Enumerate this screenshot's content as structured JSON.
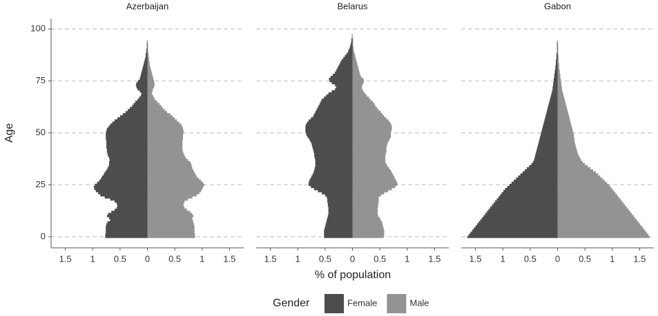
{
  "chart_data": {
    "type": "bar",
    "x_label": "% of population",
    "y_label": "Age",
    "legend_title": "Gender",
    "legend_position": "bottom",
    "grid": true,
    "xlim": [
      -1.76,
      1.76
    ],
    "xticks": [
      {
        "value": -1.5,
        "label": "1.5"
      },
      {
        "value": -1,
        "label": "1"
      },
      {
        "value": -0.5,
        "label": "0.5"
      },
      0,
      0.5,
      1,
      1.5
    ],
    "ylim": [
      -5,
      105
    ],
    "yticks": [
      0,
      25,
      50,
      75,
      100
    ],
    "ages": [
      0,
      1,
      2,
      3,
      4,
      5,
      6,
      7,
      8,
      9,
      10,
      11,
      12,
      13,
      14,
      15,
      16,
      17,
      18,
      19,
      20,
      21,
      22,
      23,
      24,
      25,
      26,
      27,
      28,
      29,
      30,
      31,
      32,
      33,
      34,
      35,
      36,
      37,
      38,
      39,
      40,
      41,
      42,
      43,
      44,
      45,
      46,
      47,
      48,
      49,
      50,
      51,
      52,
      53,
      54,
      55,
      56,
      57,
      58,
      59,
      60,
      61,
      62,
      63,
      64,
      65,
      66,
      67,
      68,
      69,
      70,
      71,
      72,
      73,
      74,
      75,
      76,
      77,
      78,
      79,
      80,
      81,
      82,
      83,
      84,
      85,
      86,
      87,
      88,
      89,
      90,
      91,
      92,
      93,
      94,
      95,
      96,
      97,
      98,
      99,
      100
    ],
    "panels": [
      {
        "title": "Azerbaijan",
        "series": [
          {
            "name": "Female",
            "color": "#4d4d4d",
            "values": [
              -0.77,
              -0.77,
              -0.76,
              -0.76,
              -0.76,
              -0.76,
              -0.75,
              -0.73,
              -0.68,
              -0.7,
              -0.74,
              -0.72,
              -0.66,
              -0.6,
              -0.56,
              -0.55,
              -0.56,
              -0.6,
              -0.68,
              -0.78,
              -0.86,
              -0.9,
              -0.94,
              -0.97,
              -0.98,
              -0.96,
              -0.92,
              -0.88,
              -0.85,
              -0.83,
              -0.8,
              -0.78,
              -0.75,
              -0.73,
              -0.71,
              -0.7,
              -0.7,
              -0.69,
              -0.7,
              -0.72,
              -0.73,
              -0.74,
              -0.74,
              -0.75,
              -0.75,
              -0.75,
              -0.75,
              -0.76,
              -0.76,
              -0.76,
              -0.76,
              -0.75,
              -0.74,
              -0.71,
              -0.68,
              -0.64,
              -0.6,
              -0.55,
              -0.5,
              -0.45,
              -0.4,
              -0.36,
              -0.32,
              -0.28,
              -0.25,
              -0.22,
              -0.18,
              -0.15,
              -0.12,
              -0.11,
              -0.14,
              -0.18,
              -0.2,
              -0.21,
              -0.2,
              -0.17,
              -0.14,
              -0.13,
              -0.12,
              -0.11,
              -0.1,
              -0.09,
              -0.08,
              -0.07,
              -0.06,
              -0.05,
              -0.04,
              -0.03,
              -0.03,
              -0.02,
              -0.02,
              -0.01,
              -0.01,
              -0.01,
              -0.01,
              0,
              0,
              0,
              0,
              0,
              0
            ]
          },
          {
            "name": "Male",
            "color": "#939393",
            "values": [
              0.87,
              0.87,
              0.86,
              0.86,
              0.86,
              0.86,
              0.85,
              0.84,
              0.83,
              0.82,
              0.84,
              0.82,
              0.78,
              0.72,
              0.68,
              0.66,
              0.66,
              0.68,
              0.74,
              0.82,
              0.9,
              0.95,
              0.98,
              1.0,
              1.02,
              1.04,
              1.02,
              0.98,
              0.94,
              0.9,
              0.88,
              0.86,
              0.84,
              0.82,
              0.81,
              0.8,
              0.78,
              0.74,
              0.7,
              0.68,
              0.66,
              0.65,
              0.64,
              0.64,
              0.64,
              0.64,
              0.64,
              0.65,
              0.65,
              0.65,
              0.66,
              0.66,
              0.65,
              0.64,
              0.62,
              0.58,
              0.54,
              0.5,
              0.46,
              0.42,
              0.36,
              0.32,
              0.28,
              0.25,
              0.22,
              0.18,
              0.14,
              0.12,
              0.1,
              0.08,
              0.09,
              0.1,
              0.12,
              0.13,
              0.13,
              0.12,
              0.11,
              0.1,
              0.09,
              0.08,
              0.07,
              0.06,
              0.05,
              0.04,
              0.04,
              0.03,
              0.03,
              0.02,
              0.02,
              0.01,
              0.01,
              0.01,
              0.01,
              0.01,
              0,
              0,
              0,
              0,
              0,
              0,
              0
            ]
          }
        ]
      },
      {
        "title": "Belarus",
        "series": [
          {
            "name": "Female",
            "color": "#4d4d4d",
            "values": [
              -0.52,
              -0.52,
              -0.52,
              -0.52,
              -0.51,
              -0.5,
              -0.49,
              -0.48,
              -0.47,
              -0.46,
              -0.45,
              -0.44,
              -0.44,
              -0.44,
              -0.44,
              -0.45,
              -0.45,
              -0.46,
              -0.46,
              -0.47,
              -0.5,
              -0.56,
              -0.63,
              -0.7,
              -0.76,
              -0.8,
              -0.8,
              -0.79,
              -0.77,
              -0.75,
              -0.73,
              -0.71,
              -0.7,
              -0.69,
              -0.68,
              -0.68,
              -0.68,
              -0.68,
              -0.69,
              -0.7,
              -0.7,
              -0.71,
              -0.72,
              -0.73,
              -0.74,
              -0.75,
              -0.77,
              -0.79,
              -0.82,
              -0.84,
              -0.85,
              -0.86,
              -0.86,
              -0.86,
              -0.85,
              -0.83,
              -0.8,
              -0.76,
              -0.72,
              -0.7,
              -0.68,
              -0.66,
              -0.64,
              -0.62,
              -0.6,
              -0.58,
              -0.56,
              -0.52,
              -0.48,
              -0.44,
              -0.38,
              -0.32,
              -0.3,
              -0.32,
              -0.38,
              -0.42,
              -0.43,
              -0.4,
              -0.36,
              -0.32,
              -0.3,
              -0.28,
              -0.26,
              -0.24,
              -0.22,
              -0.2,
              -0.17,
              -0.14,
              -0.11,
              -0.08,
              -0.07,
              -0.05,
              -0.04,
              -0.03,
              -0.02,
              -0.02,
              -0.01,
              -0.01,
              0,
              0,
              0
            ]
          },
          {
            "name": "Male",
            "color": "#939393",
            "values": [
              0.57,
              0.58,
              0.58,
              0.58,
              0.57,
              0.56,
              0.55,
              0.54,
              0.52,
              0.5,
              0.47,
              0.46,
              0.46,
              0.46,
              0.46,
              0.47,
              0.47,
              0.48,
              0.48,
              0.48,
              0.52,
              0.58,
              0.65,
              0.72,
              0.78,
              0.82,
              0.82,
              0.8,
              0.78,
              0.76,
              0.74,
              0.72,
              0.7,
              0.67,
              0.64,
              0.62,
              0.6,
              0.6,
              0.6,
              0.6,
              0.61,
              0.62,
              0.62,
              0.62,
              0.63,
              0.64,
              0.66,
              0.68,
              0.7,
              0.7,
              0.7,
              0.71,
              0.72,
              0.72,
              0.71,
              0.69,
              0.66,
              0.62,
              0.58,
              0.55,
              0.52,
              0.48,
              0.45,
              0.42,
              0.4,
              0.37,
              0.33,
              0.3,
              0.26,
              0.23,
              0.2,
              0.18,
              0.17,
              0.18,
              0.2,
              0.21,
              0.2,
              0.16,
              0.14,
              0.13,
              0.12,
              0.11,
              0.1,
              0.09,
              0.08,
              0.07,
              0.06,
              0.05,
              0.04,
              0.03,
              0.02,
              0.02,
              0.01,
              0.01,
              0.01,
              0.01,
              0,
              0,
              0,
              0,
              0
            ]
          }
        ]
      },
      {
        "title": "Gabon",
        "series": [
          {
            "name": "Female",
            "color": "#4d4d4d",
            "values": [
              -1.65,
              -1.62,
              -1.59,
              -1.56,
              -1.53,
              -1.5,
              -1.47,
              -1.44,
              -1.41,
              -1.38,
              -1.35,
              -1.32,
              -1.29,
              -1.26,
              -1.23,
              -1.2,
              -1.17,
              -1.14,
              -1.11,
              -1.08,
              -1.05,
              -1.02,
              -0.99,
              -0.96,
              -0.92,
              -0.88,
              -0.84,
              -0.8,
              -0.76,
              -0.72,
              -0.68,
              -0.64,
              -0.6,
              -0.56,
              -0.52,
              -0.48,
              -0.45,
              -0.43,
              -0.42,
              -0.41,
              -0.4,
              -0.39,
              -0.38,
              -0.37,
              -0.36,
              -0.35,
              -0.34,
              -0.33,
              -0.32,
              -0.31,
              -0.3,
              -0.29,
              -0.28,
              -0.27,
              -0.26,
              -0.25,
              -0.24,
              -0.23,
              -0.22,
              -0.21,
              -0.2,
              -0.19,
              -0.18,
              -0.17,
              -0.16,
              -0.15,
              -0.14,
              -0.13,
              -0.12,
              -0.11,
              -0.1,
              -0.09,
              -0.09,
              -0.08,
              -0.08,
              -0.07,
              -0.07,
              -0.06,
              -0.06,
              -0.05,
              -0.05,
              -0.04,
              -0.04,
              -0.03,
              -0.03,
              -0.03,
              -0.02,
              -0.02,
              -0.02,
              -0.01,
              -0.01,
              -0.01,
              -0.01,
              -0.01,
              -0.01,
              0,
              0,
              0,
              0,
              0,
              0
            ]
          },
          {
            "name": "Male",
            "color": "#939393",
            "values": [
              1.68,
              1.66,
              1.63,
              1.6,
              1.57,
              1.54,
              1.51,
              1.48,
              1.45,
              1.42,
              1.39,
              1.36,
              1.33,
              1.3,
              1.27,
              1.24,
              1.21,
              1.18,
              1.15,
              1.12,
              1.09,
              1.06,
              1.03,
              1.0,
              0.97,
              0.94,
              0.9,
              0.86,
              0.82,
              0.78,
              0.74,
              0.7,
              0.65,
              0.6,
              0.55,
              0.5,
              0.46,
              0.43,
              0.41,
              0.39,
              0.37,
              0.36,
              0.35,
              0.34,
              0.33,
              0.32,
              0.31,
              0.31,
              0.3,
              0.3,
              0.29,
              0.28,
              0.27,
              0.26,
              0.25,
              0.24,
              0.23,
              0.22,
              0.21,
              0.2,
              0.19,
              0.18,
              0.17,
              0.16,
              0.15,
              0.14,
              0.13,
              0.12,
              0.11,
              0.1,
              0.09,
              0.08,
              0.08,
              0.07,
              0.07,
              0.06,
              0.06,
              0.05,
              0.05,
              0.04,
              0.04,
              0.03,
              0.03,
              0.03,
              0.02,
              0.02,
              0.02,
              0.02,
              0.01,
              0.01,
              0.01,
              0.01,
              0.01,
              0.01,
              0,
              0,
              0,
              0,
              0,
              0,
              0
            ]
          }
        ]
      }
    ]
  }
}
